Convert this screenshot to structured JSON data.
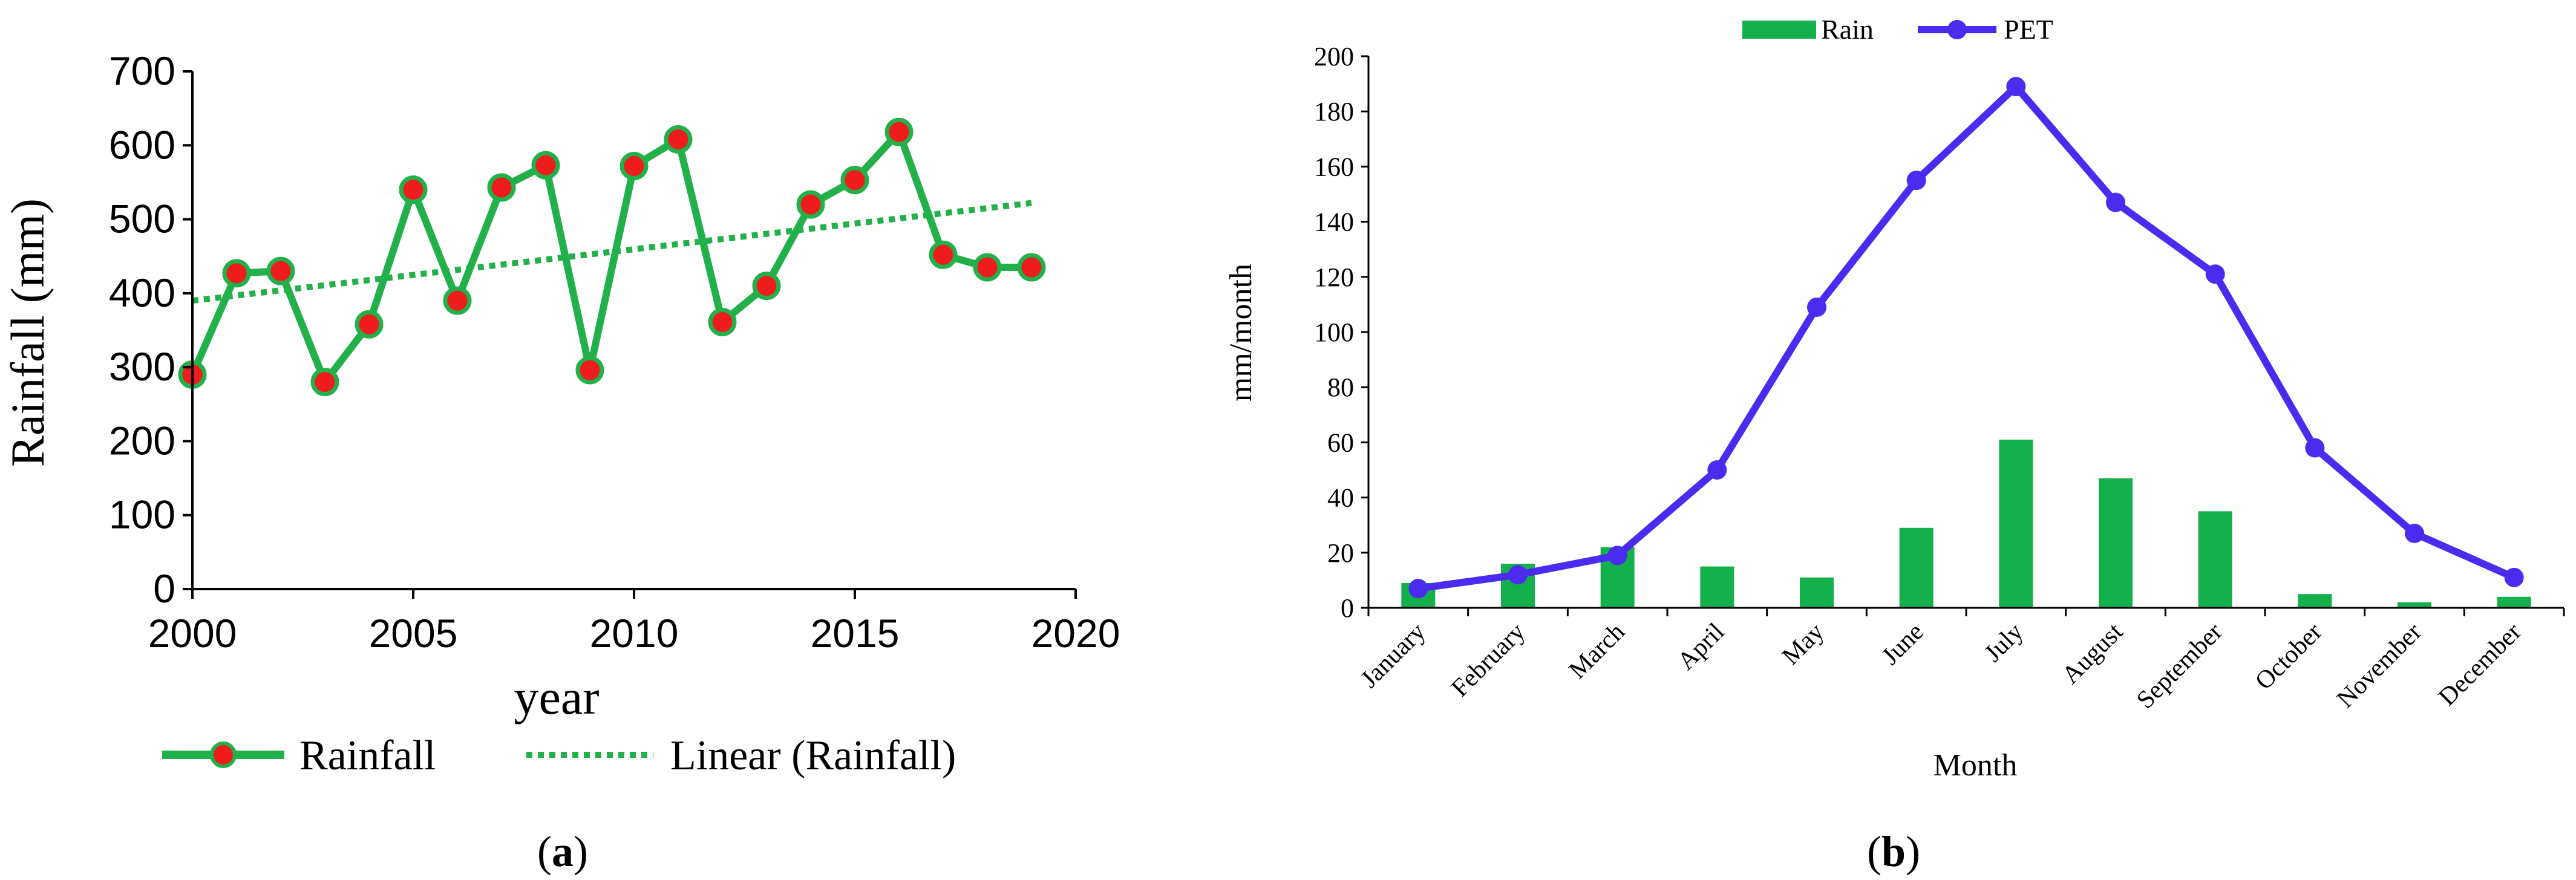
{
  "colors": {
    "rainfall_line": "#22b04a",
    "rainfall_marker_fill": "#ee1c1c",
    "trend_line": "#22b04a",
    "rain_bar": "#13b04b",
    "pet_line": "#4b2bef",
    "axis": "#000000"
  },
  "chart_data": [
    {
      "id": "a",
      "panel_label": "a",
      "type": "line",
      "title": "",
      "xlabel": "year",
      "ylabel": "Rainfall (mm)",
      "xlim": [
        2000,
        2020
      ],
      "ylim": [
        0,
        700
      ],
      "x_ticks": [
        2000,
        2005,
        2010,
        2015,
        2020
      ],
      "y_ticks": [
        0,
        100,
        200,
        300,
        400,
        500,
        600,
        700
      ],
      "grid": false,
      "legend_position": "bottom",
      "series": [
        {
          "name": "Rainfall",
          "type": "line-marker",
          "x": [
            2000,
            2001,
            2002,
            2003,
            2004,
            2005,
            2006,
            2007,
            2008,
            2009,
            2010,
            2011,
            2012,
            2013,
            2014,
            2015,
            2016,
            2017,
            2018,
            2019
          ],
          "values": [
            290,
            427,
            430,
            280,
            358,
            540,
            390,
            543,
            573,
            296,
            572,
            608,
            361,
            410,
            520,
            553,
            618,
            452,
            435,
            435
          ]
        },
        {
          "name": "Linear (Rainfall)",
          "type": "trend",
          "x": [
            2000,
            2019
          ],
          "values": [
            390,
            522
          ]
        }
      ]
    },
    {
      "id": "b",
      "panel_label": "b",
      "type": "bar+line",
      "title": "",
      "xlabel": "Month",
      "ylabel": "mm/month",
      "ylim": [
        0,
        200
      ],
      "y_ticks": [
        0,
        20,
        40,
        60,
        80,
        100,
        120,
        140,
        160,
        180,
        200
      ],
      "grid": false,
      "legend_position": "top",
      "categories": [
        "January",
        "February",
        "March",
        "April",
        "May",
        "June",
        "July",
        "August",
        "September",
        "October",
        "November",
        "December"
      ],
      "series": [
        {
          "name": "Rain",
          "type": "bar",
          "values": [
            9,
            16,
            22,
            15,
            11,
            29,
            61,
            47,
            35,
            5,
            2,
            4
          ]
        },
        {
          "name": "PET",
          "type": "line",
          "values": [
            7,
            12,
            19,
            50,
            109,
            155,
            189,
            147,
            121,
            58,
            27,
            11
          ]
        }
      ]
    }
  ]
}
